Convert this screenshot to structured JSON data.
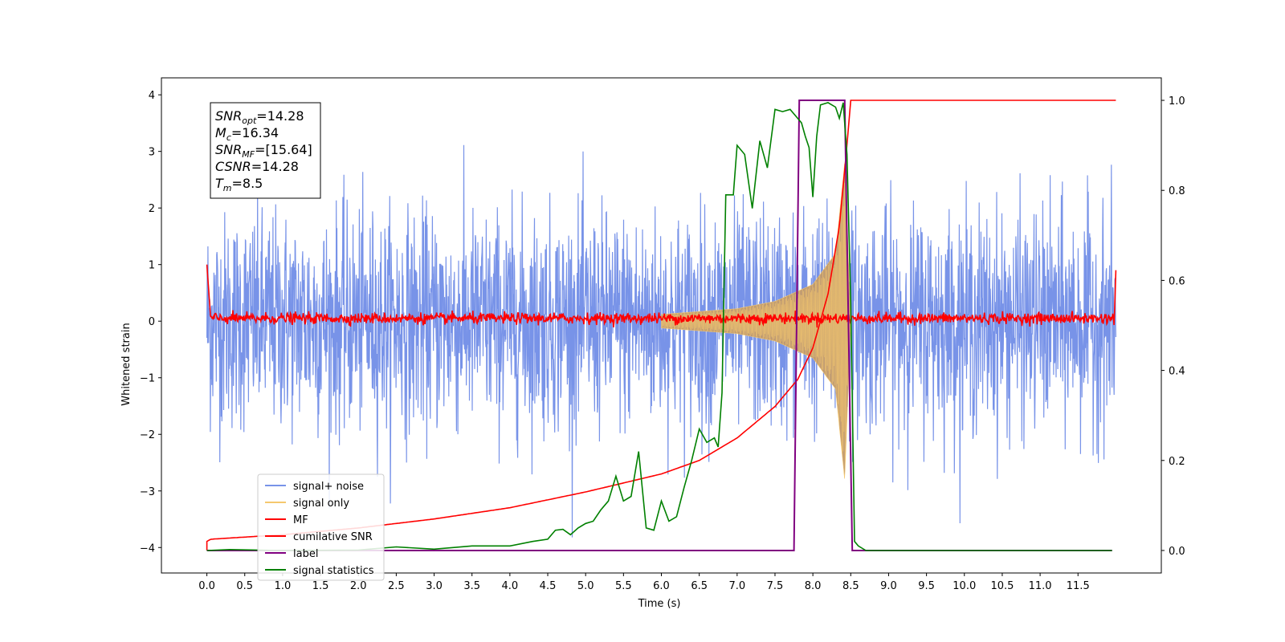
{
  "chart_data": {
    "type": "line",
    "xlabel": "Time (s)",
    "ylabel": "Whitened strain",
    "xlim": [
      -0.6,
      12.6
    ],
    "ylim_left": [
      -4.45,
      4.3
    ],
    "ylim_right": [
      -0.05,
      1.05
    ],
    "x_ticks": [
      "0.0",
      "0.5",
      "1.0",
      "1.5",
      "2.0",
      "2.5",
      "3.0",
      "3.5",
      "4.0",
      "4.5",
      "5.0",
      "5.5",
      "6.0",
      "6.5",
      "7.0",
      "7.5",
      "8.0",
      "8.5",
      "9.0",
      "9.5",
      "10.0",
      "10.5",
      "11.0",
      "11.5"
    ],
    "y_ticks_left": [
      "4",
      "3",
      "2",
      "1",
      "0",
      "−1",
      "−2",
      "−3",
      "−4"
    ],
    "y_ticks_right": [
      "1.0",
      "0.8",
      "0.6",
      "0.4",
      "0.2",
      "0.0"
    ],
    "info_box": [
      {
        "base": "SNR",
        "sub": "opt",
        "rest": "=14.28"
      },
      {
        "base": "M",
        "sub": "c",
        "rest": "=16.34"
      },
      {
        "base": "SNR",
        "sub": "MF",
        "rest": "=[15.64]"
      },
      {
        "base": "CSNR",
        "sub": "",
        "rest": "=14.28"
      },
      {
        "base": "T",
        "sub": "m",
        "rest": "=8.5"
      }
    ],
    "legend": {
      "placement": "lower-left",
      "entries": [
        "signal+ noise",
        "signal only",
        "MF",
        "cumilative SNR",
        "label",
        "signal statistics"
      ]
    },
    "colors": {
      "signal_noise": "#7893e8",
      "signal_only": "#f5c86e",
      "signal_fill": "#c29a6c",
      "mf": "#ff0000",
      "csnr": "#ff0000",
      "label": "#800080",
      "stat": "#008000"
    },
    "series": [
      {
        "name": "signal+ noise",
        "axis": "left",
        "description_x_range": [
          0.0,
          12.0
        ],
        "typical_range": [
          -2.2,
          2.4
        ],
        "extremes": [
          -4.45,
          3.6
        ]
      },
      {
        "name": "signal only",
        "axis": "left",
        "chirp_end_time": 8.5,
        "amplitude_points": [
          [
            0.0,
            0.05
          ],
          [
            6.0,
            0.12
          ],
          [
            7.0,
            0.22
          ],
          [
            7.5,
            0.35
          ],
          [
            8.0,
            0.65
          ],
          [
            8.3,
            1.2
          ],
          [
            8.42,
            2.8
          ],
          [
            8.5,
            0.0
          ]
        ]
      },
      {
        "name": "MF",
        "axis": "left",
        "baseline": 0.05,
        "noise_amplitude": 0.08,
        "edge_values": [
          [
            0.0,
            1.0
          ],
          [
            12.0,
            0.9
          ]
        ]
      },
      {
        "name": "cumilative SNR",
        "axis": "right",
        "points": [
          [
            0.0,
            0.02
          ],
          [
            0.05,
            0.025
          ],
          [
            1.0,
            0.035
          ],
          [
            2.0,
            0.05
          ],
          [
            3.0,
            0.07
          ],
          [
            4.0,
            0.095
          ],
          [
            5.0,
            0.13
          ],
          [
            6.0,
            0.17
          ],
          [
            6.5,
            0.2
          ],
          [
            7.0,
            0.25
          ],
          [
            7.5,
            0.32
          ],
          [
            7.8,
            0.38
          ],
          [
            8.0,
            0.45
          ],
          [
            8.2,
            0.57
          ],
          [
            8.35,
            0.72
          ],
          [
            8.45,
            0.9
          ],
          [
            8.5,
            1.0
          ],
          [
            12.0,
            1.0
          ]
        ]
      },
      {
        "name": "label",
        "axis": "right",
        "points": [
          [
            0.0,
            0.0
          ],
          [
            7.75,
            0.0
          ],
          [
            7.82,
            1.0
          ],
          [
            8.42,
            1.0
          ],
          [
            8.42,
            0.995
          ],
          [
            8.52,
            0.0
          ],
          [
            11.95,
            0.0
          ]
        ]
      },
      {
        "name": "signal statistics",
        "axis": "right",
        "points": [
          [
            0.0,
            0.0
          ],
          [
            0.3,
            0.002
          ],
          [
            1.0,
            0.0
          ],
          [
            2.0,
            0.001
          ],
          [
            2.5,
            0.008
          ],
          [
            3.0,
            0.003
          ],
          [
            3.5,
            0.01
          ],
          [
            4.0,
            0.01
          ],
          [
            4.3,
            0.02
          ],
          [
            4.5,
            0.025
          ],
          [
            4.6,
            0.045
          ],
          [
            4.7,
            0.047
          ],
          [
            4.8,
            0.035
          ],
          [
            4.9,
            0.05
          ],
          [
            5.0,
            0.06
          ],
          [
            5.1,
            0.065
          ],
          [
            5.2,
            0.09
          ],
          [
            5.3,
            0.11
          ],
          [
            5.4,
            0.165
          ],
          [
            5.5,
            0.11
          ],
          [
            5.6,
            0.12
          ],
          [
            5.7,
            0.22
          ],
          [
            5.8,
            0.05
          ],
          [
            5.9,
            0.045
          ],
          [
            6.0,
            0.11
          ],
          [
            6.1,
            0.065
          ],
          [
            6.2,
            0.075
          ],
          [
            6.3,
            0.14
          ],
          [
            6.4,
            0.2
          ],
          [
            6.5,
            0.27
          ],
          [
            6.6,
            0.24
          ],
          [
            6.7,
            0.25
          ],
          [
            6.75,
            0.23
          ],
          [
            6.8,
            0.35
          ],
          [
            6.85,
            0.79
          ],
          [
            6.95,
            0.79
          ],
          [
            7.0,
            0.9
          ],
          [
            7.1,
            0.88
          ],
          [
            7.2,
            0.76
          ],
          [
            7.3,
            0.91
          ],
          [
            7.4,
            0.85
          ],
          [
            7.5,
            0.98
          ],
          [
            7.6,
            0.975
          ],
          [
            7.7,
            0.98
          ],
          [
            7.8,
            0.96
          ],
          [
            7.85,
            0.95
          ],
          [
            7.9,
            0.92
          ],
          [
            7.95,
            0.895
          ],
          [
            8.0,
            0.785
          ],
          [
            8.05,
            0.92
          ],
          [
            8.1,
            0.99
          ],
          [
            8.2,
            0.995
          ],
          [
            8.3,
            0.985
          ],
          [
            8.35,
            0.96
          ],
          [
            8.4,
            0.995
          ],
          [
            8.45,
            0.88
          ],
          [
            8.5,
            0.55
          ],
          [
            8.55,
            0.02
          ],
          [
            8.6,
            0.01
          ],
          [
            8.7,
            0.0
          ],
          [
            11.95,
            0.0
          ]
        ]
      }
    ]
  }
}
